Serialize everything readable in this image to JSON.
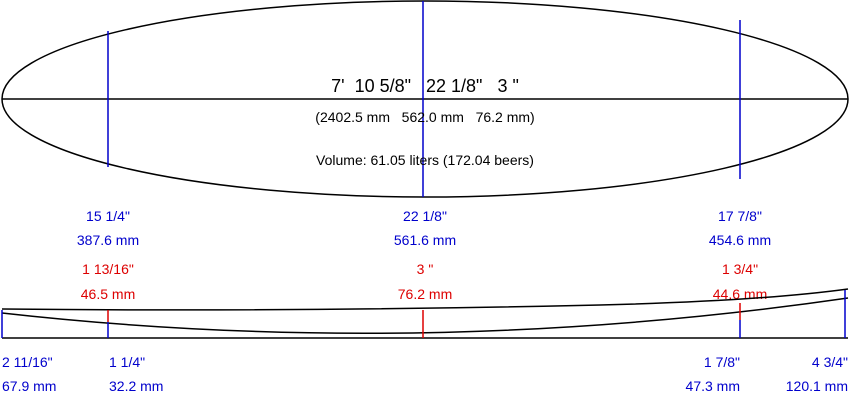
{
  "plan": {
    "dimensions": "7'  10 5/8\"   22 1/8\"   3 \"",
    "metric": "(2402.5 mm   562.0 mm   76.2 mm)",
    "volume": "Volume: 61.05 liters (172.04 beers)"
  },
  "widths": [
    {
      "imperial": "15 1/4\"",
      "metric": "387.6 mm"
    },
    {
      "imperial": "22 1/8\"",
      "metric": "561.6 mm"
    },
    {
      "imperial": "17 7/8\"",
      "metric": "454.6 mm"
    }
  ],
  "thickness": [
    {
      "imperial": "1 13/16\"",
      "metric": "46.5 mm"
    },
    {
      "imperial": "3 \"",
      "metric": "76.2 mm"
    },
    {
      "imperial": "1 3/4\"",
      "metric": "44.6 mm"
    }
  ],
  "rocker": [
    {
      "imperial": "2 11/16\"",
      "metric": "67.9 mm"
    },
    {
      "imperial": "1 1/4\"",
      "metric": "32.2 mm"
    },
    {
      "imperial": "1 7/8\"",
      "metric": "47.3 mm"
    },
    {
      "imperial": "4 3/4\"",
      "metric": "120.1 mm"
    }
  ]
}
